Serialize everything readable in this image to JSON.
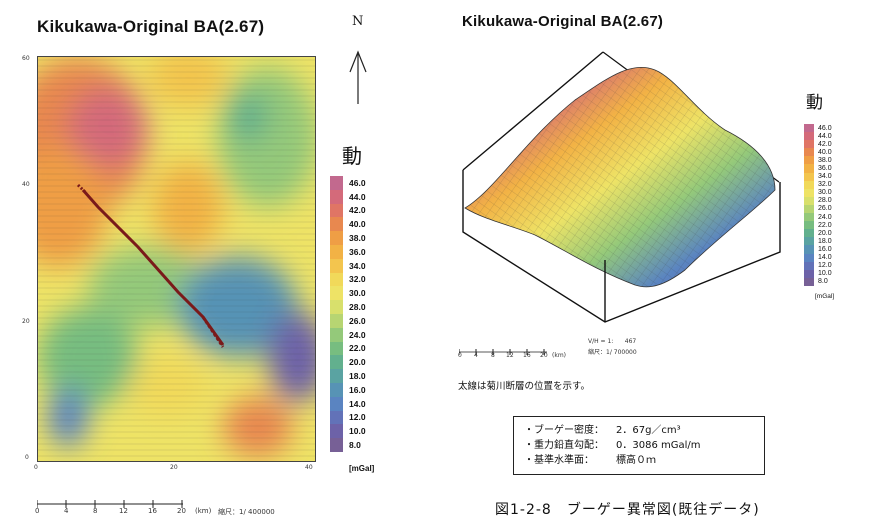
{
  "left_map": {
    "title": "Kikukawa-Original BA(2.67)",
    "north_label": "N",
    "y_ticks": [
      "60",
      "40",
      "20",
      "0"
    ],
    "x_ticks": [
      "0",
      "20",
      "40"
    ],
    "scale_ticks": [
      "0",
      "4",
      "8",
      "12",
      "16",
      "20"
    ],
    "scale_unit": "(km)",
    "scale_ratio": "縮尺：1/ 400000",
    "legend_heading": "動",
    "legend_unit": "[mGal]",
    "legend_values": [
      "46.0",
      "44.0",
      "42.0",
      "40.0",
      "38.0",
      "36.0",
      "34.0",
      "32.0",
      "30.0",
      "28.0",
      "26.0",
      "24.0",
      "22.0",
      "20.0",
      "18.0",
      "16.0",
      "14.0",
      "12.0",
      "10.0",
      "8.0"
    ]
  },
  "right_map": {
    "title": "Kikukawa-Original BA(2.67)",
    "legend_heading": "動",
    "legend_unit": "[mGal]",
    "legend_values": [
      "46.0",
      "44.0",
      "42.0",
      "40.0",
      "38.0",
      "36.0",
      "34.0",
      "32.0",
      "30.0",
      "28.0",
      "26.0",
      "24.0",
      "22.0",
      "20.0",
      "18.0",
      "16.0",
      "14.0",
      "12.0",
      "10.0",
      "8.0"
    ],
    "scale_ticks": [
      "0",
      "4",
      "8",
      "12",
      "16",
      "20"
    ],
    "scale_unit": "(km)",
    "vexag": "V/H = 1:      467",
    "scale_ratio": "縮尺：1/ 700000",
    "note": "太線は菊川断層の位置を示す。"
  },
  "params": [
    {
      "label": "・ブーゲー密度：",
      "value": "2．67g／cm³"
    },
    {
      "label": "・重力鉛直勾配：",
      "value": "0．3086 mGal/m"
    },
    {
      "label": "・基準水準面：",
      "value": "標高０ｍ"
    }
  ],
  "caption": "図1-2-8　ブーゲー異常図(既往データ)",
  "colors": [
    "#c2698e",
    "#d46a7a",
    "#e07565",
    "#e8884f",
    "#ef9e45",
    "#f2b245",
    "#f3c54e",
    "#f1d95a",
    "#eee366",
    "#d8e06c",
    "#b7d572",
    "#94c97a",
    "#77bd80",
    "#62b08e",
    "#5aa3a2",
    "#5793b5",
    "#5a84c1",
    "#6272b8",
    "#6d62a8",
    "#776096"
  ]
}
